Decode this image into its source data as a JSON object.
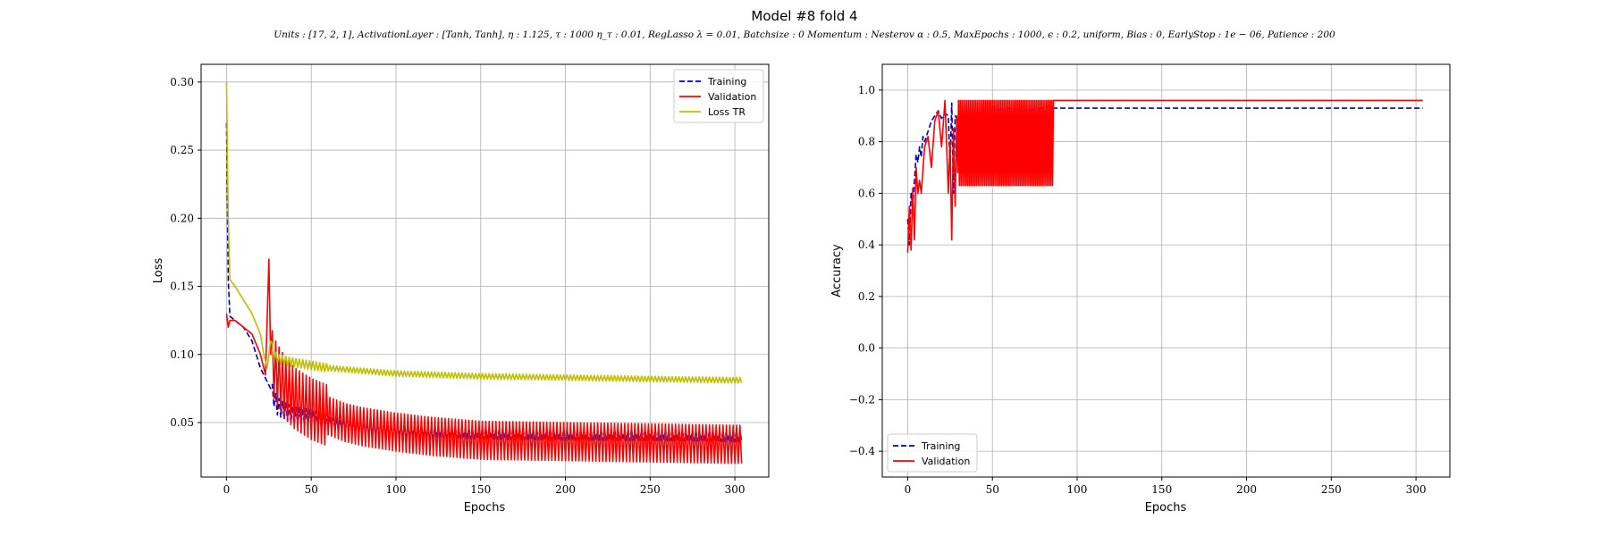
{
  "figure": {
    "title": "Model #8 fold 4",
    "subtitle": "Units : [17, 2, 1], ActivationLayer : [Tanh, Tanh], η : 1.125, τ : 1000 η_τ : 0.01, RegLasso λ = 0.01, Batchsize : 0 Momentum : Nesterov α : 0.5, MaxEpochs : 1000, ϵ : 0.2, uniform, Bias : 0, EarlyStop : 1e − 06, Patience : 200"
  },
  "chart_data": [
    {
      "type": "line",
      "xlabel": "Epochs",
      "ylabel": "Loss",
      "xlim": [
        -15,
        320
      ],
      "ylim": [
        0.01,
        0.313
      ],
      "xticks": [
        0,
        50,
        100,
        150,
        200,
        250,
        300
      ],
      "yticks": [
        0.05,
        0.1,
        0.15,
        0.2,
        0.25,
        0.3
      ],
      "ytick_labels": [
        "0.05",
        "0.10",
        "0.15",
        "0.20",
        "0.25",
        "0.30"
      ],
      "grid": true,
      "legend_position": "top-right",
      "series": [
        {
          "name": "Training",
          "color": "#0000cc",
          "style": "dashed",
          "x": [
            0,
            1,
            2,
            5,
            10,
            15,
            20,
            24,
            26,
            28,
            30,
            35,
            40,
            50,
            60,
            70,
            80,
            100,
            120,
            150,
            200,
            250,
            304
          ],
          "y": [
            0.27,
            0.155,
            0.128,
            0.125,
            0.12,
            0.11,
            0.09,
            0.08,
            0.075,
            0.068,
            0.062,
            0.058,
            0.055,
            0.053,
            0.05,
            0.048,
            0.046,
            0.044,
            0.043,
            0.042,
            0.041,
            0.041,
            0.04
          ],
          "oscillation": 0.004
        },
        {
          "name": "Validation",
          "color": "#ff0000",
          "style": "solid",
          "x": [
            0,
            1,
            2,
            5,
            10,
            15,
            20,
            23,
            25,
            26,
            28,
            30,
            35,
            40,
            50,
            60,
            70,
            80,
            100,
            120,
            150,
            200,
            250,
            304
          ],
          "y": [
            0.13,
            0.12,
            0.125,
            0.125,
            0.12,
            0.115,
            0.1,
            0.085,
            0.17,
            0.1,
            0.09,
            0.085,
            0.075,
            0.068,
            0.06,
            0.055,
            0.05,
            0.047,
            0.043,
            0.04,
            0.037,
            0.036,
            0.035,
            0.034
          ],
          "oscillation": 0.014
        },
        {
          "name": "Loss TR",
          "color": "#bfbf00",
          "style": "solid",
          "x": [
            0,
            1,
            2,
            5,
            10,
            15,
            20,
            22,
            24,
            26,
            28,
            30,
            40,
            50,
            60,
            80,
            100,
            150,
            200,
            250,
            304
          ],
          "y": [
            0.3,
            0.2,
            0.155,
            0.15,
            0.14,
            0.13,
            0.115,
            0.1,
            0.09,
            0.11,
            0.1,
            0.097,
            0.094,
            0.092,
            0.09,
            0.088,
            0.086,
            0.084,
            0.083,
            0.082,
            0.081
          ],
          "oscillation": 0.002
        }
      ]
    },
    {
      "type": "line",
      "xlabel": "Epochs",
      "ylabel": "Accuracy",
      "xlim": [
        -15,
        320
      ],
      "ylim": [
        -0.5,
        1.1
      ],
      "xticks": [
        0,
        50,
        100,
        150,
        200,
        250,
        300
      ],
      "yticks": [
        -0.4,
        -0.2,
        0.0,
        0.2,
        0.4,
        0.6,
        0.8,
        1.0
      ],
      "ytick_labels": [
        "−0.4",
        "−0.2",
        "0.0",
        "0.2",
        "0.4",
        "0.6",
        "0.8",
        "1.0"
      ],
      "grid": true,
      "legend_position": "bottom-left",
      "series": [
        {
          "name": "Training",
          "color": "#0000cc",
          "style": "dashed",
          "x": [
            0,
            1,
            2,
            3,
            4,
            5,
            6,
            7,
            8,
            9,
            10,
            12,
            14,
            16,
            18,
            20,
            22,
            24,
            25,
            26,
            27,
            28,
            30,
            35,
            40,
            50,
            60,
            70,
            80,
            85,
            86,
            304
          ],
          "y": [
            0.5,
            0.4,
            0.6,
            0.55,
            0.65,
            0.75,
            0.72,
            0.78,
            0.74,
            0.82,
            0.8,
            0.84,
            0.88,
            0.9,
            0.92,
            0.89,
            0.91,
            0.9,
            0.7,
            0.95,
            0.6,
            0.9,
            0.88,
            0.9,
            0.91,
            0.92,
            0.93,
            0.92,
            0.93,
            0.94,
            0.93,
            0.93
          ]
        },
        {
          "name": "Validation",
          "color": "#ff0000",
          "style": "solid",
          "x": [
            0,
            1,
            2,
            3,
            4,
            5,
            6,
            7,
            8,
            10,
            12,
            14,
            16,
            18,
            20,
            22,
            24,
            25,
            26,
            27,
            28,
            29,
            30,
            31,
            32,
            33,
            84,
            85,
            86,
            304
          ],
          "y": [
            0.37,
            0.55,
            0.38,
            0.62,
            0.42,
            0.7,
            0.6,
            0.65,
            0.6,
            0.78,
            0.82,
            0.7,
            0.88,
            0.92,
            0.78,
            0.96,
            0.6,
            0.8,
            0.42,
            0.85,
            0.55,
            0.9,
            0.46,
            0.96,
            0.6,
            0.96,
            0.96,
            0.8,
            0.96,
            0.96
          ],
          "band": {
            "from": 30,
            "to": 86,
            "low": 0.63,
            "high": 0.96,
            "period": 2
          }
        }
      ]
    }
  ]
}
